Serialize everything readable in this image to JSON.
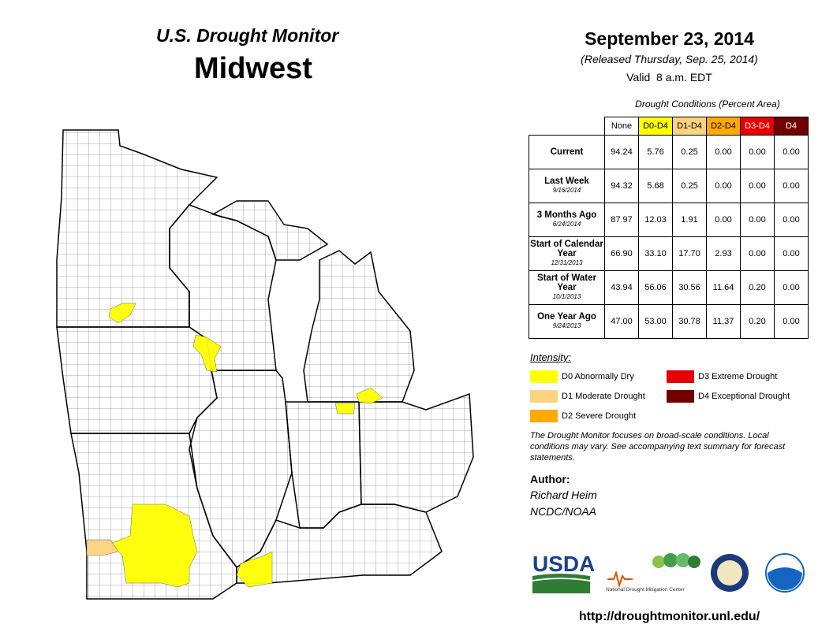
{
  "header": {
    "program": "U.S. Drought Monitor",
    "region": "Midwest",
    "date": "September 23, 2014",
    "released": "(Released Thursday, Sep. 25, 2014)",
    "valid": "Valid  8 a.m. EDT"
  },
  "table": {
    "caption": "Drought Conditions (Percent Area)",
    "columns": [
      "None",
      "D0-D4",
      "D1-D4",
      "D2-D4",
      "D3-D4",
      "D4"
    ],
    "rows": [
      {
        "label": "Current",
        "values": [
          "94.24",
          "5.76",
          "0.25",
          "0.00",
          "0.00",
          "0.00"
        ]
      },
      {
        "label": "Last Week",
        "date": "9/16/2014",
        "values": [
          "94.32",
          "5.68",
          "0.25",
          "0.00",
          "0.00",
          "0.00"
        ]
      },
      {
        "label": "3 Months Ago",
        "date": "6/24/2014",
        "values": [
          "87.97",
          "12.03",
          "1.91",
          "0.00",
          "0.00",
          "0.00"
        ]
      },
      {
        "label": "Start of Calendar Year",
        "date": "12/31/2013",
        "values": [
          "66.90",
          "33.10",
          "17.70",
          "2.93",
          "0.00",
          "0.00"
        ]
      },
      {
        "label": "Start of Water Year",
        "date": "10/1/2013",
        "values": [
          "43.94",
          "56.06",
          "30.56",
          "11.64",
          "0.20",
          "0.00"
        ]
      },
      {
        "label": "One Year Ago",
        "date": "9/24/2013",
        "values": [
          "47.00",
          "53.00",
          "30.78",
          "11.37",
          "0.20",
          "0.00"
        ]
      }
    ]
  },
  "legend": {
    "title": "Intensity:",
    "items": [
      {
        "label": "D0 Abnormally Dry",
        "color": "#ffff00"
      },
      {
        "label": "D1 Moderate Drought",
        "color": "#fcd37f"
      },
      {
        "label": "D2 Severe Drought",
        "color": "#ffaa00"
      },
      {
        "label": "D3 Extreme Drought",
        "color": "#e60000"
      },
      {
        "label": "D4 Exceptional Drought",
        "color": "#730000"
      }
    ]
  },
  "note": "The Drought Monitor focuses on broad-scale conditions. Local conditions may vary. See accompanying text summary for forecast statements.",
  "author": {
    "heading": "Author:",
    "name": "Richard Heim",
    "org": "NCDC/NOAA"
  },
  "logos": {
    "usda": "USDA",
    "ndmc": "National Drought Mitigation Center"
  },
  "url": "http://droughtmonitor.unl.edu/"
}
